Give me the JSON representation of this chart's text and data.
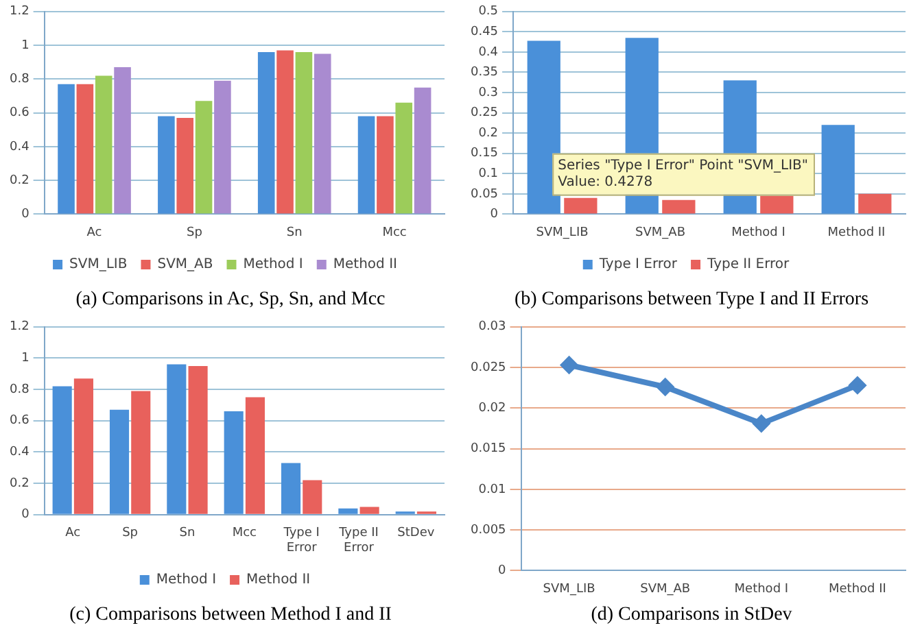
{
  "chart_data": [
    {
      "type": "bar",
      "title": "(a) Comparisons in Ac, Sp, Sn, and Mcc",
      "categories": [
        "Ac",
        "Sp",
        "Sn",
        "Mcc"
      ],
      "series": [
        {
          "name": "SVM_LIB",
          "color": "#4a90d9",
          "values": [
            0.77,
            0.58,
            0.96,
            0.58
          ]
        },
        {
          "name": "SVM_AB",
          "color": "#e8615c",
          "values": [
            0.77,
            0.57,
            0.97,
            0.58
          ]
        },
        {
          "name": "Method I",
          "color": "#9ccc5a",
          "values": [
            0.82,
            0.67,
            0.96,
            0.66
          ]
        },
        {
          "name": "Method II",
          "color": "#a98bd0",
          "values": [
            0.87,
            0.79,
            0.95,
            0.75
          ]
        }
      ],
      "ylim": [
        0,
        1.2
      ],
      "yticks": [
        0,
        0.2,
        0.4,
        0.6,
        0.8,
        1,
        1.2
      ],
      "grid": "y",
      "legend": "bottom"
    },
    {
      "type": "bar",
      "title": "(b) Comparisons between Type I and II Errors",
      "categories": [
        "SVM_LIB",
        "SVM_AB",
        "Method I",
        "Method II"
      ],
      "series": [
        {
          "name": "Type I Error",
          "color": "#4a90d9",
          "values": [
            0.4278,
            0.435,
            0.33,
            0.22
          ]
        },
        {
          "name": "Type II Error",
          "color": "#e8615c",
          "values": [
            0.04,
            0.035,
            0.045,
            0.05
          ]
        }
      ],
      "ylim": [
        0,
        0.5
      ],
      "yticks": [
        0,
        0.05,
        0.1,
        0.15,
        0.2,
        0.25,
        0.3,
        0.35,
        0.4,
        0.45,
        0.5
      ],
      "grid": "y",
      "legend": "bottom",
      "annotations": [
        "Series \"Type I Error\" Point \"SVM_LIB\"\nValue: 0.4278"
      ]
    },
    {
      "type": "bar",
      "title": "(c) Comparisons between Method I and II",
      "categories": [
        "Ac",
        "Sp",
        "Sn",
        "Mcc",
        "Type I Error",
        "Type II Error",
        "StDev"
      ],
      "series": [
        {
          "name": "Method I",
          "color": "#4a90d9",
          "values": [
            0.82,
            0.67,
            0.96,
            0.66,
            0.33,
            0.04,
            0.02
          ]
        },
        {
          "name": "Method II",
          "color": "#e8615c",
          "values": [
            0.87,
            0.79,
            0.95,
            0.75,
            0.22,
            0.05,
            0.02
          ]
        }
      ],
      "ylim": [
        0,
        1.2
      ],
      "yticks": [
        0,
        0.2,
        0.4,
        0.6,
        0.8,
        1,
        1.2
      ],
      "grid": "y",
      "legend": "bottom"
    },
    {
      "type": "line",
      "title": "(d) Comparisons in StDev",
      "categories": [
        "SVM_LIB",
        "SVM_AB",
        "Method I",
        "Method II"
      ],
      "series": [
        {
          "color": "#4a86c8",
          "values": [
            0.0253,
            0.0226,
            0.0181,
            0.0228
          ]
        }
      ],
      "ylim": [
        0,
        0.03
      ],
      "yticks": [
        0,
        0.005,
        0.01,
        0.015,
        0.02,
        0.025,
        0.03
      ],
      "grid": "y",
      "marker": "diamond",
      "line_style": "solid"
    }
  ]
}
